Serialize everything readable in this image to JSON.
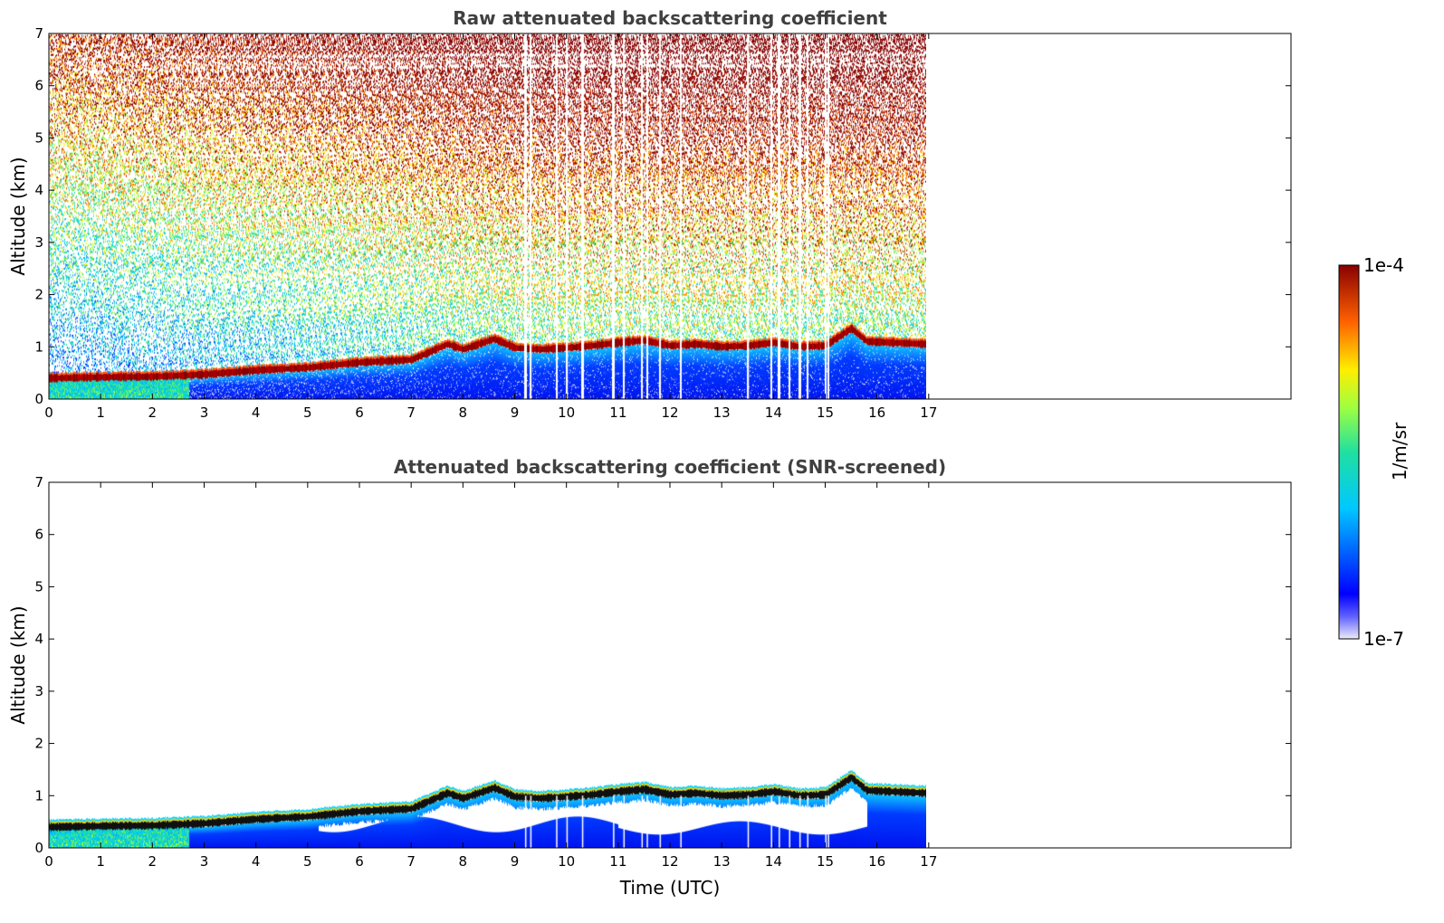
{
  "chart_data": [
    {
      "type": "heatmap",
      "title": "Raw attenuated backscattering coefficient",
      "xlabel": "",
      "ylabel": "Altitude (km)",
      "xlim": [
        0,
        24
      ],
      "ylim": [
        0,
        7
      ],
      "data_xrange": [
        0,
        16.95
      ],
      "x_ticks": [
        "0",
        "1",
        "2",
        "3",
        "4",
        "5",
        "6",
        "7",
        "8",
        "9",
        "10",
        "11",
        "12",
        "13",
        "14",
        "15",
        "16",
        "17"
      ],
      "y_ticks": [
        "0",
        "1",
        "2",
        "3",
        "4",
        "5",
        "6",
        "7"
      ],
      "layer_altitude_km": [
        [
          0,
          0.4
        ],
        [
          1,
          0.42
        ],
        [
          2,
          0.43
        ],
        [
          3,
          0.47
        ],
        [
          4,
          0.55
        ],
        [
          5,
          0.6
        ],
        [
          6,
          0.7
        ],
        [
          7,
          0.75
        ],
        [
          7.7,
          1.05
        ],
        [
          8,
          0.95
        ],
        [
          8.6,
          1.15
        ],
        [
          9,
          0.98
        ],
        [
          9.5,
          0.95
        ],
        [
          10,
          0.98
        ],
        [
          10.5,
          1.02
        ],
        [
          11,
          1.08
        ],
        [
          11.5,
          1.12
        ],
        [
          12,
          1.02
        ],
        [
          12.5,
          1.05
        ],
        [
          13,
          1.0
        ],
        [
          13.5,
          1.02
        ],
        [
          14,
          1.08
        ],
        [
          14.5,
          1.0
        ],
        [
          15,
          1.02
        ],
        [
          15.5,
          1.35
        ],
        [
          15.8,
          1.1
        ],
        [
          16.95,
          1.05
        ]
      ],
      "gap_times_utc": [
        9.2,
        9.3,
        9.8,
        10.0,
        10.3,
        10.9,
        11.1,
        11.45,
        11.55,
        11.8,
        12.2,
        13.5,
        13.95,
        14.1,
        14.3,
        14.5,
        14.65,
        15.0,
        15.05
      ]
    },
    {
      "type": "heatmap",
      "title": "Attenuated backscattering coefficient (SNR-screened)",
      "xlabel": "Time (UTC)",
      "ylabel": "Altitude (km)",
      "xlim": [
        0,
        24
      ],
      "ylim": [
        0,
        7
      ],
      "data_xrange": [
        0,
        16.95
      ],
      "x_ticks": [
        "0",
        "1",
        "2",
        "3",
        "4",
        "5",
        "6",
        "7",
        "8",
        "9",
        "10",
        "11",
        "12",
        "13",
        "14",
        "15",
        "16",
        "17"
      ],
      "y_ticks": [
        "0",
        "1",
        "2",
        "3",
        "4",
        "5",
        "6",
        "7"
      ]
    }
  ],
  "colorbar": {
    "label": "1/m/sr",
    "min_label": "1e-7",
    "max_label": "1e-4",
    "scale": "log",
    "colormap": "jet"
  }
}
